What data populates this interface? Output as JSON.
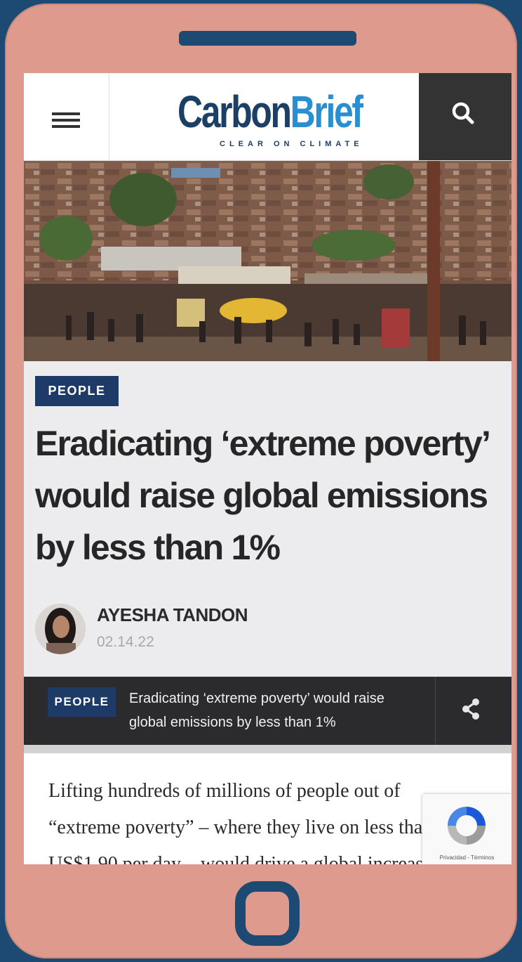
{
  "site": {
    "name_part1": "Carbon",
    "name_part2": "Brief",
    "tagline": "CLEAR ON CLIMATE"
  },
  "article": {
    "category": "PEOPLE",
    "title": "Eradicating ‘extreme poverty’ would raise global emissions by less than 1%",
    "author": "AYESHA TANDON",
    "date": "02.14.22",
    "body": "Lifting hundreds of millions of people out of “extreme poverty” – where they live on less than US$1.90 per day – would drive a global increase"
  },
  "sticky_bar": {
    "category": "PEOPLE",
    "title": "Eradicating ‘extreme poverty’ would raise global emissions by less than 1%"
  },
  "recaptcha": {
    "label": "Privacidad - Términos"
  },
  "icons": {
    "menu": "hamburger-menu-icon",
    "search": "search-icon",
    "share": "share-icon",
    "recaptcha": "recaptcha-icon"
  },
  "colors": {
    "frame": "#1c4a73",
    "phone": "#de9a8c",
    "brand_dark": "#1c3f66",
    "brand_light": "#2a8fd0",
    "tag_bg": "#1e3a66"
  }
}
